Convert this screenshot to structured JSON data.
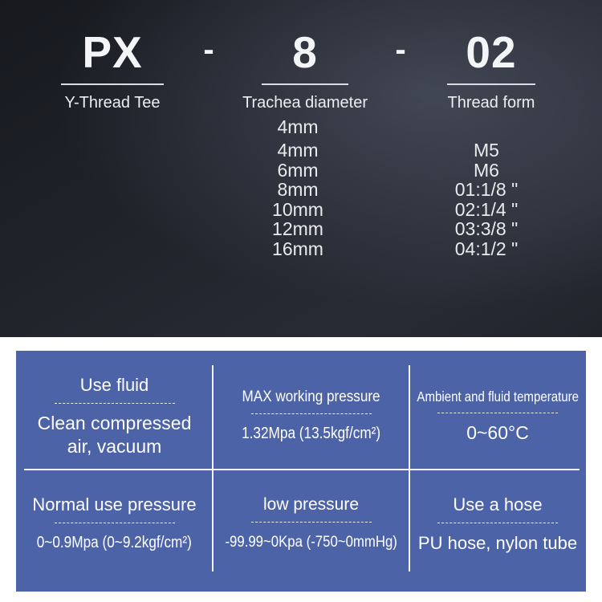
{
  "hero": {
    "separator": "-",
    "parts": [
      {
        "code": "PX",
        "label": "Y-Thread Tee"
      },
      {
        "code": "8",
        "label": "Trachea diameter"
      },
      {
        "code": "02",
        "label": "Thread form"
      }
    ],
    "options": {
      "diameters": [
        "4mm",
        "4mm",
        "6mm",
        "8mm",
        "10mm",
        "12mm",
        "16mm"
      ],
      "threads": [
        "M5",
        "M6",
        "01:1/8 \"",
        "02:1/4 \"",
        "03:3/8 \"",
        "04:1/2 \""
      ]
    }
  },
  "specs": {
    "cells": [
      {
        "title": "Use fluid",
        "value": "Clean compressed air, vacuum"
      },
      {
        "title": "MAX working pressure",
        "value": "1.32Mpa  (13.5kgf/cm²)"
      },
      {
        "title": "Ambient and fluid temperature",
        "value": "0~60°C"
      },
      {
        "title": "Normal use pressure",
        "value": "0~0.9Mpa  (0~9.2kgf/cm²)"
      },
      {
        "title": "low pressure",
        "value": "-99.99~0Kpa  (-750~0mmHg)"
      },
      {
        "title": "Use a hose",
        "value": "PU hose, nylon tube"
      }
    ]
  },
  "colors": {
    "panel_blue": "#4d63a8",
    "hero_background": "#22242c",
    "text_light": "#f2f3f5",
    "divider_white": "#f2f4f8"
  }
}
